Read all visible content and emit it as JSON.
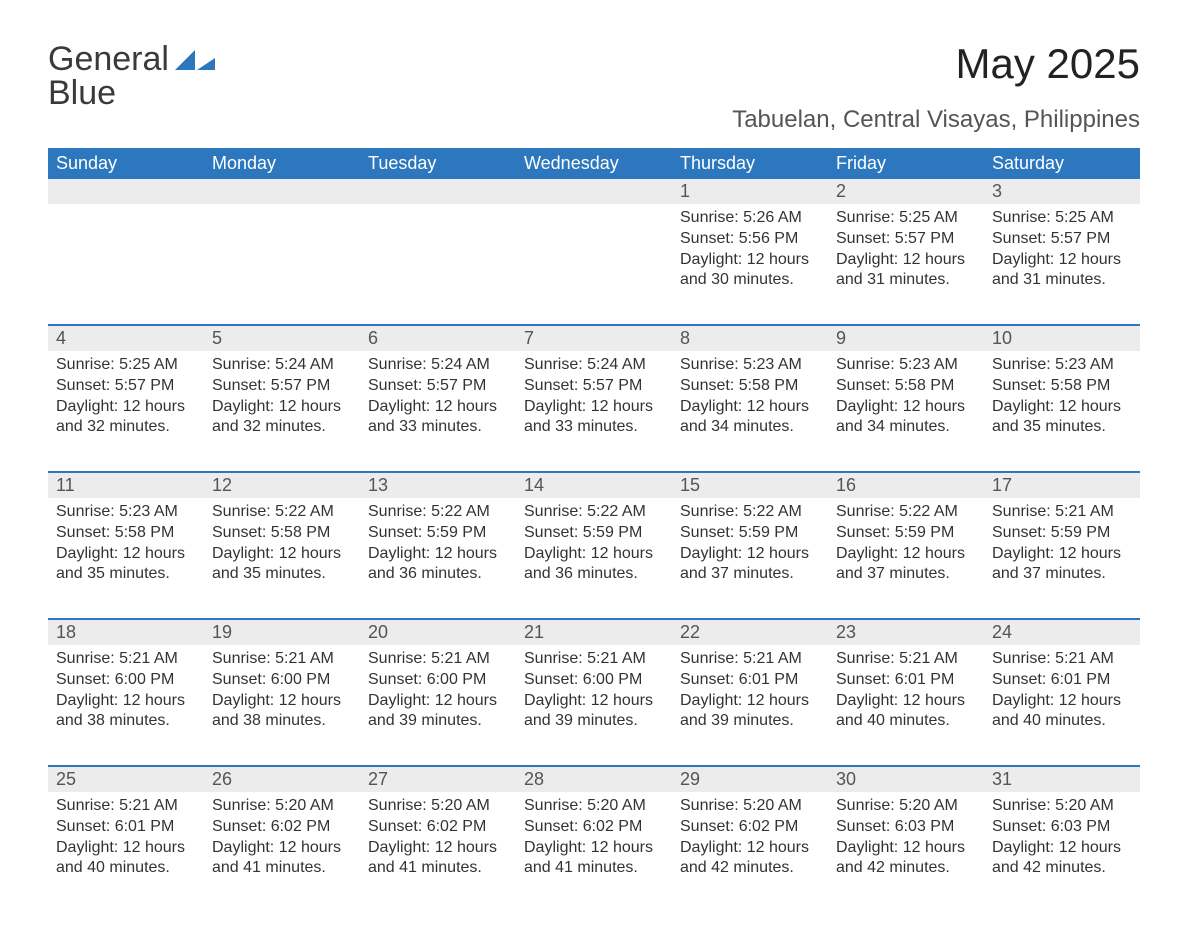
{
  "brand": {
    "word1": "General",
    "word2": "Blue"
  },
  "title": "May 2025",
  "location": "Tabuelan, Central Visayas, Philippines",
  "colors": {
    "header_bg": "#2c77bd",
    "header_text": "#ffffff",
    "daynum_bg": "#ececec",
    "text": "#333333",
    "rule": "#2c77bd",
    "background": "#ffffff"
  },
  "weekdays": [
    "Sunday",
    "Monday",
    "Tuesday",
    "Wednesday",
    "Thursday",
    "Friday",
    "Saturday"
  ],
  "weeks": [
    [
      {
        "n": "",
        "sunrise": "",
        "sunset": "",
        "daylight": ""
      },
      {
        "n": "",
        "sunrise": "",
        "sunset": "",
        "daylight": ""
      },
      {
        "n": "",
        "sunrise": "",
        "sunset": "",
        "daylight": ""
      },
      {
        "n": "",
        "sunrise": "",
        "sunset": "",
        "daylight": ""
      },
      {
        "n": "1",
        "sunrise": "Sunrise: 5:26 AM",
        "sunset": "Sunset: 5:56 PM",
        "daylight": "Daylight: 12 hours and 30 minutes."
      },
      {
        "n": "2",
        "sunrise": "Sunrise: 5:25 AM",
        "sunset": "Sunset: 5:57 PM",
        "daylight": "Daylight: 12 hours and 31 minutes."
      },
      {
        "n": "3",
        "sunrise": "Sunrise: 5:25 AM",
        "sunset": "Sunset: 5:57 PM",
        "daylight": "Daylight: 12 hours and 31 minutes."
      }
    ],
    [
      {
        "n": "4",
        "sunrise": "Sunrise: 5:25 AM",
        "sunset": "Sunset: 5:57 PM",
        "daylight": "Daylight: 12 hours and 32 minutes."
      },
      {
        "n": "5",
        "sunrise": "Sunrise: 5:24 AM",
        "sunset": "Sunset: 5:57 PM",
        "daylight": "Daylight: 12 hours and 32 minutes."
      },
      {
        "n": "6",
        "sunrise": "Sunrise: 5:24 AM",
        "sunset": "Sunset: 5:57 PM",
        "daylight": "Daylight: 12 hours and 33 minutes."
      },
      {
        "n": "7",
        "sunrise": "Sunrise: 5:24 AM",
        "sunset": "Sunset: 5:57 PM",
        "daylight": "Daylight: 12 hours and 33 minutes."
      },
      {
        "n": "8",
        "sunrise": "Sunrise: 5:23 AM",
        "sunset": "Sunset: 5:58 PM",
        "daylight": "Daylight: 12 hours and 34 minutes."
      },
      {
        "n": "9",
        "sunrise": "Sunrise: 5:23 AM",
        "sunset": "Sunset: 5:58 PM",
        "daylight": "Daylight: 12 hours and 34 minutes."
      },
      {
        "n": "10",
        "sunrise": "Sunrise: 5:23 AM",
        "sunset": "Sunset: 5:58 PM",
        "daylight": "Daylight: 12 hours and 35 minutes."
      }
    ],
    [
      {
        "n": "11",
        "sunrise": "Sunrise: 5:23 AM",
        "sunset": "Sunset: 5:58 PM",
        "daylight": "Daylight: 12 hours and 35 minutes."
      },
      {
        "n": "12",
        "sunrise": "Sunrise: 5:22 AM",
        "sunset": "Sunset: 5:58 PM",
        "daylight": "Daylight: 12 hours and 35 minutes."
      },
      {
        "n": "13",
        "sunrise": "Sunrise: 5:22 AM",
        "sunset": "Sunset: 5:59 PM",
        "daylight": "Daylight: 12 hours and 36 minutes."
      },
      {
        "n": "14",
        "sunrise": "Sunrise: 5:22 AM",
        "sunset": "Sunset: 5:59 PM",
        "daylight": "Daylight: 12 hours and 36 minutes."
      },
      {
        "n": "15",
        "sunrise": "Sunrise: 5:22 AM",
        "sunset": "Sunset: 5:59 PM",
        "daylight": "Daylight: 12 hours and 37 minutes."
      },
      {
        "n": "16",
        "sunrise": "Sunrise: 5:22 AM",
        "sunset": "Sunset: 5:59 PM",
        "daylight": "Daylight: 12 hours and 37 minutes."
      },
      {
        "n": "17",
        "sunrise": "Sunrise: 5:21 AM",
        "sunset": "Sunset: 5:59 PM",
        "daylight": "Daylight: 12 hours and 37 minutes."
      }
    ],
    [
      {
        "n": "18",
        "sunrise": "Sunrise: 5:21 AM",
        "sunset": "Sunset: 6:00 PM",
        "daylight": "Daylight: 12 hours and 38 minutes."
      },
      {
        "n": "19",
        "sunrise": "Sunrise: 5:21 AM",
        "sunset": "Sunset: 6:00 PM",
        "daylight": "Daylight: 12 hours and 38 minutes."
      },
      {
        "n": "20",
        "sunrise": "Sunrise: 5:21 AM",
        "sunset": "Sunset: 6:00 PM",
        "daylight": "Daylight: 12 hours and 39 minutes."
      },
      {
        "n": "21",
        "sunrise": "Sunrise: 5:21 AM",
        "sunset": "Sunset: 6:00 PM",
        "daylight": "Daylight: 12 hours and 39 minutes."
      },
      {
        "n": "22",
        "sunrise": "Sunrise: 5:21 AM",
        "sunset": "Sunset: 6:01 PM",
        "daylight": "Daylight: 12 hours and 39 minutes."
      },
      {
        "n": "23",
        "sunrise": "Sunrise: 5:21 AM",
        "sunset": "Sunset: 6:01 PM",
        "daylight": "Daylight: 12 hours and 40 minutes."
      },
      {
        "n": "24",
        "sunrise": "Sunrise: 5:21 AM",
        "sunset": "Sunset: 6:01 PM",
        "daylight": "Daylight: 12 hours and 40 minutes."
      }
    ],
    [
      {
        "n": "25",
        "sunrise": "Sunrise: 5:21 AM",
        "sunset": "Sunset: 6:01 PM",
        "daylight": "Daylight: 12 hours and 40 minutes."
      },
      {
        "n": "26",
        "sunrise": "Sunrise: 5:20 AM",
        "sunset": "Sunset: 6:02 PM",
        "daylight": "Daylight: 12 hours and 41 minutes."
      },
      {
        "n": "27",
        "sunrise": "Sunrise: 5:20 AM",
        "sunset": "Sunset: 6:02 PM",
        "daylight": "Daylight: 12 hours and 41 minutes."
      },
      {
        "n": "28",
        "sunrise": "Sunrise: 5:20 AM",
        "sunset": "Sunset: 6:02 PM",
        "daylight": "Daylight: 12 hours and 41 minutes."
      },
      {
        "n": "29",
        "sunrise": "Sunrise: 5:20 AM",
        "sunset": "Sunset: 6:02 PM",
        "daylight": "Daylight: 12 hours and 42 minutes."
      },
      {
        "n": "30",
        "sunrise": "Sunrise: 5:20 AM",
        "sunset": "Sunset: 6:03 PM",
        "daylight": "Daylight: 12 hours and 42 minutes."
      },
      {
        "n": "31",
        "sunrise": "Sunrise: 5:20 AM",
        "sunset": "Sunset: 6:03 PM",
        "daylight": "Daylight: 12 hours and 42 minutes."
      }
    ]
  ]
}
